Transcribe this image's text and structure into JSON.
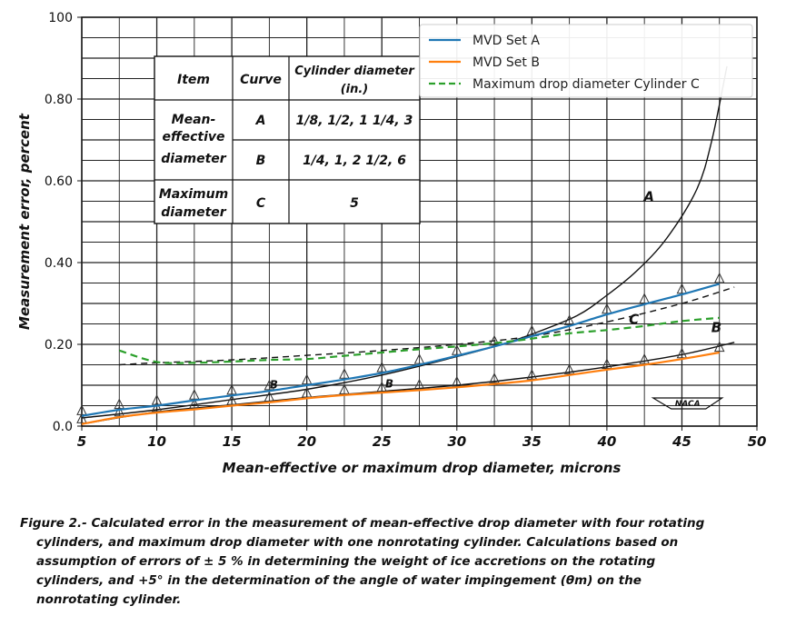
{
  "chart_data": {
    "type": "line",
    "xlabel": "Mean-effective or maximum drop diameter, microns",
    "ylabel": "Measurement error, percent",
    "xlim": [
      5,
      50
    ],
    "ylim": [
      0,
      100
    ],
    "xticks": [
      "5",
      "10",
      "15",
      "20",
      "25",
      "30",
      "35",
      "40",
      "45",
      "50"
    ],
    "yticks": [
      "0.0",
      "0.20",
      "0.40",
      "0.60",
      "0.80",
      "100"
    ],
    "grid": true,
    "legend_position": "top-right",
    "legend": [
      "MVD Set A",
      "MVD Set B",
      "Maximum drop diameter Cylinder C"
    ],
    "series": [
      {
        "name": "MVD Set A",
        "color": "#1f77b4",
        "style": "solid",
        "x": [
          5,
          7.5,
          10,
          12.5,
          15,
          17.5,
          20,
          22.5,
          25,
          27.5,
          30,
          32.5,
          35,
          37.5,
          40,
          42.5,
          45,
          47.5
        ],
        "y": [
          2.5,
          4.0,
          5.0,
          6.3,
          7.5,
          8.6,
          10.0,
          11.4,
          13.0,
          15.0,
          17.2,
          19.5,
          22.0,
          24.5,
          27.3,
          29.8,
          32.2,
          34.8
        ]
      },
      {
        "name": "MVD Set B",
        "color": "#ff7f0e",
        "style": "solid",
        "x": [
          5,
          7.5,
          10,
          12.5,
          15,
          17.5,
          20,
          22.5,
          25,
          27.5,
          30,
          32.5,
          35,
          37.5,
          40,
          42.5,
          45,
          47.5
        ],
        "y": [
          0.5,
          2.2,
          3.3,
          4.1,
          5.0,
          5.8,
          6.8,
          7.6,
          8.2,
          8.8,
          9.5,
          10.3,
          11.2,
          12.5,
          13.8,
          15.0,
          16.4,
          18.0
        ]
      },
      {
        "name": "Maximum drop diameter Cylinder C",
        "color": "#2ca02c",
        "style": "dashed",
        "x": [
          7.5,
          10,
          12.5,
          15,
          17.5,
          20,
          22.5,
          25,
          27.5,
          30,
          32.5,
          35,
          37.5,
          40,
          42.5,
          45,
          47.5
        ],
        "y": [
          18.5,
          15.7,
          15.5,
          15.8,
          16.2,
          16.4,
          17.2,
          18.0,
          18.8,
          19.5,
          20.3,
          21.4,
          22.7,
          23.5,
          24.5,
          25.7,
          26.5
        ]
      }
    ],
    "background_curves": [
      {
        "label": "A",
        "style": "solid",
        "color": "#111111",
        "x": [
          5,
          10,
          15,
          20,
          25,
          30,
          33,
          35,
          38,
          40,
          42,
          44,
          46,
          47,
          48
        ],
        "y": [
          2.0,
          4.0,
          6.5,
          9.0,
          12.5,
          17.0,
          20.0,
          22.5,
          27.0,
          32.0,
          38.0,
          46.0,
          58.0,
          70.0,
          88.0
        ]
      },
      {
        "label": "B",
        "style": "solid",
        "color": "#111111",
        "x": [
          5,
          10,
          15,
          20,
          25,
          30,
          35,
          40,
          45,
          48.5
        ],
        "y": [
          0.5,
          3.5,
          5.2,
          7.0,
          8.5,
          10.0,
          12.0,
          14.5,
          17.5,
          20.5
        ]
      },
      {
        "label": "C",
        "style": "dashed",
        "color": "#111111",
        "x": [
          7.5,
          10,
          15,
          20,
          25,
          30,
          35,
          40,
          45,
          48.5
        ],
        "y": [
          15.0,
          15.5,
          16.2,
          17.3,
          18.5,
          20.0,
          22.0,
          25.5,
          30.0,
          34.0
        ]
      }
    ],
    "curve_labels": [
      {
        "text": "A",
        "x": 42.8,
        "y": 55
      },
      {
        "text": "C",
        "x": 41.8,
        "y": 25
      },
      {
        "text": "B",
        "x": 47.3,
        "y": 23
      }
    ],
    "series_markers": [
      {
        "text": "B",
        "x": 17.8,
        "y": 9.2
      },
      {
        "text": "B",
        "x": 25.5,
        "y": 9.5
      }
    ],
    "annotation_table": {
      "headers": [
        "Item",
        "Curve",
        "Cylinder diameter",
        "(in.)"
      ],
      "rows": [
        {
          "item": "Mean-",
          "curve": "A",
          "diam": "1/8,  1/2,  1 1/4,  3"
        },
        {
          "item": "effective",
          "curve": "",
          "diam": ""
        },
        {
          "item": "diameter",
          "curve": "B",
          "diam": "1/4,  1,  2 1/2,  6"
        },
        {
          "item": "Maximum",
          "curve": "C",
          "diam": "5"
        },
        {
          "item": "diameter",
          "curve": "",
          "diam": ""
        }
      ]
    },
    "logo_text": "NACA"
  },
  "caption": {
    "line1": "Figure 2.- Calculated error in the measurement of mean-effective drop diameter with four rotating",
    "line2": "cylinders, and maximum drop diameter with one nonrotating cylinder. Calculations based on",
    "line3": "assumption of errors of ± 5 % in determining the weight of ice accretions on the rotating",
    "line4": "cylinders, and +5° in the determination of the angle of water impingement (θm) on the",
    "line5": "nonrotating cylinder."
  }
}
